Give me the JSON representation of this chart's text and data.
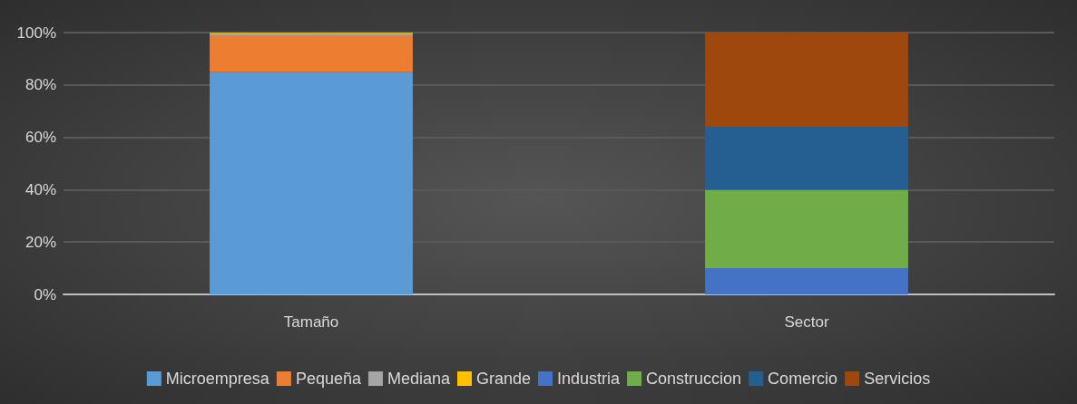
{
  "chart_data": {
    "type": "bar",
    "stacked": true,
    "categories": [
      "Tamaño",
      "Sector"
    ],
    "series": [
      {
        "name": "Microempresa",
        "color": "#5b9bd5",
        "values": [
          85,
          null
        ]
      },
      {
        "name": "Pequeña",
        "color": "#ed7d31",
        "values": [
          14,
          null
        ]
      },
      {
        "name": "Mediana",
        "color": "#a5a5a5",
        "values": [
          0.7,
          null
        ]
      },
      {
        "name": "Grande",
        "color": "#ffc000",
        "values": [
          0.3,
          null
        ]
      },
      {
        "name": "Industria",
        "color": "#4472c4",
        "values": [
          null,
          10
        ]
      },
      {
        "name": "Construccion",
        "color": "#70ad47",
        "values": [
          null,
          30
        ]
      },
      {
        "name": "Comercio",
        "color": "#255e91",
        "values": [
          null,
          24
        ]
      },
      {
        "name": "Servicios",
        "color": "#9e480e",
        "values": [
          null,
          36
        ]
      }
    ],
    "ylim": [
      0,
      100
    ],
    "yticks": [
      {
        "value": 0,
        "label": "0%"
      },
      {
        "value": 20,
        "label": "20%"
      },
      {
        "value": 40,
        "label": "40%"
      },
      {
        "value": 60,
        "label": "60%"
      },
      {
        "value": 80,
        "label": "80%"
      },
      {
        "value": 100,
        "label": "100%"
      }
    ],
    "grid": "y",
    "legend": "bottom"
  }
}
